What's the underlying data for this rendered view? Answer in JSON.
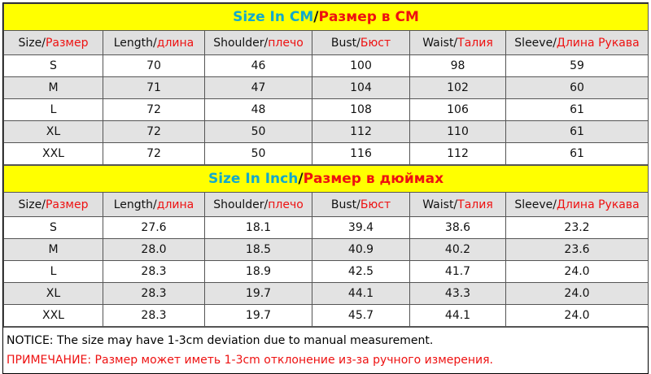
{
  "tables": [
    {
      "title": {
        "en": "Size In CM",
        "sep": "/",
        "ru": "Размер в CM"
      },
      "columns": [
        {
          "en": "Size/",
          "ru": "Размер"
        },
        {
          "en": "Length/",
          "ru": "длина"
        },
        {
          "en": "Shoulder/",
          "ru": "плечо"
        },
        {
          "en": "Bust/",
          "ru": "Бюст"
        },
        {
          "en": "Waist/",
          "ru": "Талия"
        },
        {
          "en": "Sleeve/",
          "ru": "Длина Рукава"
        }
      ],
      "rows": [
        [
          "S",
          "70",
          "46",
          "100",
          "98",
          "59"
        ],
        [
          "M",
          "71",
          "47",
          "104",
          "102",
          "60"
        ],
        [
          "L",
          "72",
          "48",
          "108",
          "106",
          "61"
        ],
        [
          "XL",
          "72",
          "50",
          "112",
          "110",
          "61"
        ],
        [
          "XXL",
          "72",
          "50",
          "116",
          "112",
          "61"
        ]
      ]
    },
    {
      "title": {
        "en": "Size In Inch",
        "sep": "/",
        "ru": "Размер в дюймах"
      },
      "columns": [
        {
          "en": "Size/",
          "ru": "Размер"
        },
        {
          "en": "Length/",
          "ru": "длина"
        },
        {
          "en": "Shoulder/",
          "ru": "плечо"
        },
        {
          "en": "Bust/",
          "ru": "Бюст"
        },
        {
          "en": "Waist/",
          "ru": "Талия"
        },
        {
          "en": "Sleeve/",
          "ru": "Длина Рукава"
        }
      ],
      "rows": [
        [
          "S",
          "27.6",
          "18.1",
          "39.4",
          "38.6",
          "23.2"
        ],
        [
          "M",
          "28.0",
          "18.5",
          "40.9",
          "40.2",
          "23.6"
        ],
        [
          "L",
          "28.3",
          "18.9",
          "42.5",
          "41.7",
          "24.0"
        ],
        [
          "XL",
          "28.3",
          "19.7",
          "44.1",
          "43.3",
          "24.0"
        ],
        [
          "XXL",
          "28.3",
          "19.7",
          "45.7",
          "44.1",
          "24.0"
        ]
      ]
    }
  ],
  "notice": {
    "en": "NOTICE: The size may have 1-3cm deviation due to manual measurement.",
    "ru": "ПРИМЕЧАНИЕ: Размер может иметь 1-3cm отклонение из-за ручного измерения."
  }
}
